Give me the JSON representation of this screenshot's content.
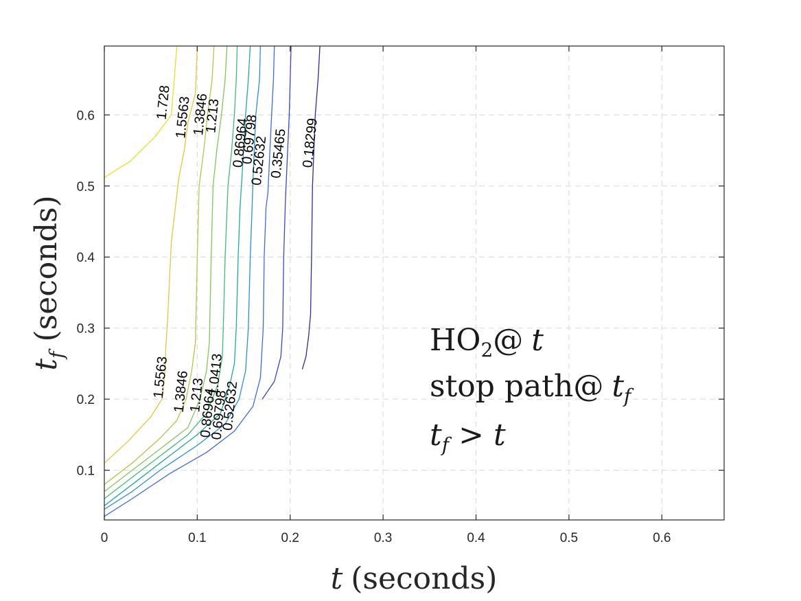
{
  "chart_data": {
    "type": "contour",
    "xlabel_var": "t",
    "xlabel_unit": "(seconds)",
    "ylabel_var": "t",
    "ylabel_sub": "f",
    "ylabel_unit": "(seconds)",
    "xlim": [
      0,
      0.667
    ],
    "ylim": [
      0.03,
      0.697
    ],
    "xticks": [
      0,
      0.1,
      0.2,
      0.3,
      0.4,
      0.5,
      0.6
    ],
    "xtick_labels": [
      "0",
      "0.1",
      "0.2",
      "0.3",
      "0.4",
      "0.5",
      "0.6"
    ],
    "yticks": [
      0.1,
      0.2,
      0.3,
      0.4,
      0.5,
      0.6
    ],
    "ytick_labels": [
      "0.1",
      "0.2",
      "0.3",
      "0.4",
      "0.5",
      "0.6"
    ],
    "grid": true,
    "annotation": {
      "line1_main": "HO",
      "line1_sub": "2",
      "line1_at": "@",
      "line1_var": "t",
      "line2_main": "stop path@",
      "line2_var": "t",
      "line2_sub": "f",
      "line3_var1": "t",
      "line3_sub": "f",
      "line3_op": ">",
      "line3_var2": "t"
    },
    "levels": [
      {
        "value": "1.728",
        "color": "#e8de2d",
        "points": [
          [
            0.0,
            0.512
          ],
          [
            0.028,
            0.535
          ],
          [
            0.055,
            0.57
          ],
          [
            0.072,
            0.6
          ],
          [
            0.075,
            0.645
          ],
          [
            0.078,
            0.697
          ]
        ]
      },
      {
        "value": "1.5563",
        "color": "#e9c43a",
        "points": [
          [
            0.0,
            0.11
          ],
          [
            0.025,
            0.14
          ],
          [
            0.05,
            0.175
          ],
          [
            0.062,
            0.2
          ],
          [
            0.065,
            0.235
          ],
          [
            0.066,
            0.27
          ],
          [
            0.068,
            0.31
          ],
          [
            0.072,
            0.42
          ],
          [
            0.08,
            0.51
          ],
          [
            0.086,
            0.55
          ],
          [
            0.09,
            0.59
          ],
          [
            0.098,
            0.63
          ],
          [
            0.1,
            0.697
          ]
        ]
      },
      {
        "value": "1.3846",
        "color": "#b4c64a",
        "points": [
          [
            0.0,
            0.08
          ],
          [
            0.03,
            0.11
          ],
          [
            0.06,
            0.145
          ],
          [
            0.078,
            0.17
          ],
          [
            0.088,
            0.2
          ],
          [
            0.094,
            0.24
          ],
          [
            0.098,
            0.28
          ],
          [
            0.1,
            0.4
          ],
          [
            0.102,
            0.5
          ],
          [
            0.107,
            0.55
          ],
          [
            0.111,
            0.6
          ],
          [
            0.116,
            0.65
          ],
          [
            0.118,
            0.697
          ]
        ]
      },
      {
        "value": "1.213",
        "color": "#86c45a",
        "points": [
          [
            0.0,
            0.07
          ],
          [
            0.03,
            0.1
          ],
          [
            0.06,
            0.13
          ],
          [
            0.09,
            0.16
          ],
          [
            0.103,
            0.2
          ],
          [
            0.11,
            0.24
          ],
          [
            0.113,
            0.28
          ],
          [
            0.115,
            0.4
          ],
          [
            0.117,
            0.5
          ],
          [
            0.121,
            0.55
          ],
          [
            0.126,
            0.6
          ],
          [
            0.13,
            0.65
          ],
          [
            0.132,
            0.697
          ]
        ]
      },
      {
        "value": "1.0413",
        "color": "#45b878",
        "points": [
          [
            0.0,
            0.06
          ],
          [
            0.03,
            0.09
          ],
          [
            0.06,
            0.12
          ],
          [
            0.09,
            0.15
          ],
          [
            0.11,
            0.18
          ],
          [
            0.122,
            0.22
          ],
          [
            0.127,
            0.26
          ],
          [
            0.128,
            0.3
          ],
          [
            0.13,
            0.4
          ],
          [
            0.133,
            0.5
          ],
          [
            0.137,
            0.55
          ],
          [
            0.14,
            0.6
          ],
          [
            0.142,
            0.65
          ],
          [
            0.143,
            0.697
          ]
        ]
      },
      {
        "value": "0.86964",
        "color": "#21a8a0",
        "points": [
          [
            0.0,
            0.05
          ],
          [
            0.03,
            0.08
          ],
          [
            0.06,
            0.11
          ],
          [
            0.1,
            0.15
          ],
          [
            0.125,
            0.18
          ],
          [
            0.135,
            0.22
          ],
          [
            0.14,
            0.25
          ],
          [
            0.142,
            0.3
          ],
          [
            0.144,
            0.4
          ],
          [
            0.146,
            0.47
          ],
          [
            0.148,
            0.51
          ],
          [
            0.152,
            0.6
          ],
          [
            0.155,
            0.65
          ],
          [
            0.157,
            0.697
          ]
        ]
      },
      {
        "value": "0.69798",
        "color": "#2b8fd4",
        "points": [
          [
            0.0,
            0.045
          ],
          [
            0.03,
            0.07
          ],
          [
            0.06,
            0.1
          ],
          [
            0.1,
            0.135
          ],
          [
            0.13,
            0.165
          ],
          [
            0.145,
            0.2
          ],
          [
            0.152,
            0.24
          ],
          [
            0.155,
            0.3
          ],
          [
            0.157,
            0.4
          ],
          [
            0.159,
            0.47
          ],
          [
            0.16,
            0.51
          ],
          [
            0.163,
            0.6
          ],
          [
            0.167,
            0.65
          ],
          [
            0.168,
            0.697
          ]
        ]
      },
      {
        "value": "0.52632",
        "color": "#3b6ae3",
        "points": [
          [
            0.0,
            0.035
          ],
          [
            0.03,
            0.06
          ],
          [
            0.07,
            0.095
          ],
          [
            0.11,
            0.125
          ],
          [
            0.14,
            0.155
          ],
          [
            0.16,
            0.19
          ],
          [
            0.168,
            0.23
          ],
          [
            0.171,
            0.3
          ],
          [
            0.172,
            0.4
          ],
          [
            0.174,
            0.47
          ],
          [
            0.176,
            0.49
          ],
          [
            0.18,
            0.6
          ],
          [
            0.182,
            0.65
          ],
          [
            0.183,
            0.697
          ]
        ]
      },
      {
        "value": "0.35465",
        "color": "#3648c8",
        "points": [
          [
            0.17,
            0.2
          ],
          [
            0.183,
            0.225
          ],
          [
            0.19,
            0.26
          ],
          [
            0.192,
            0.3
          ],
          [
            0.193,
            0.4
          ],
          [
            0.195,
            0.484
          ],
          [
            0.199,
            0.6
          ],
          [
            0.2,
            0.65
          ],
          [
            0.201,
            0.697
          ]
        ]
      },
      {
        "value": "0.18299",
        "color": "#2c2d9a",
        "points": [
          [
            0.213,
            0.242
          ],
          [
            0.217,
            0.26
          ],
          [
            0.22,
            0.29
          ],
          [
            0.222,
            0.32
          ],
          [
            0.223,
            0.4
          ],
          [
            0.224,
            0.5
          ],
          [
            0.227,
            0.6
          ],
          [
            0.23,
            0.65
          ],
          [
            0.232,
            0.697
          ]
        ]
      }
    ],
    "contour_labels": [
      {
        "text": "1.728",
        "x": 0.068,
        "y": 0.617
      },
      {
        "text": "1.5563",
        "x": 0.089,
        "y": 0.596
      },
      {
        "text": "1.3846",
        "x": 0.108,
        "y": 0.6
      },
      {
        "text": "1.213",
        "x": 0.121,
        "y": 0.598
      },
      {
        "text": "0.86964",
        "x": 0.151,
        "y": 0.56
      },
      {
        "text": "0.69798",
        "x": 0.161,
        "y": 0.565
      },
      {
        "text": "0.52632",
        "x": 0.171,
        "y": 0.535
      },
      {
        "text": "0.35465",
        "x": 0.192,
        "y": 0.545
      },
      {
        "text": "0.18299",
        "x": 0.226,
        "y": 0.56
      },
      {
        "text": "1.5563",
        "x": 0.065,
        "y": 0.23
      },
      {
        "text": "1.3846",
        "x": 0.087,
        "y": 0.21
      },
      {
        "text": "1.213",
        "x": 0.104,
        "y": 0.205
      },
      {
        "text": "1.0413",
        "x": 0.124,
        "y": 0.234
      },
      {
        "text": "0.86964",
        "x": 0.116,
        "y": 0.18
      },
      {
        "text": "0.69798",
        "x": 0.128,
        "y": 0.177
      },
      {
        "text": "0.52632",
        "x": 0.14,
        "y": 0.19
      }
    ]
  }
}
